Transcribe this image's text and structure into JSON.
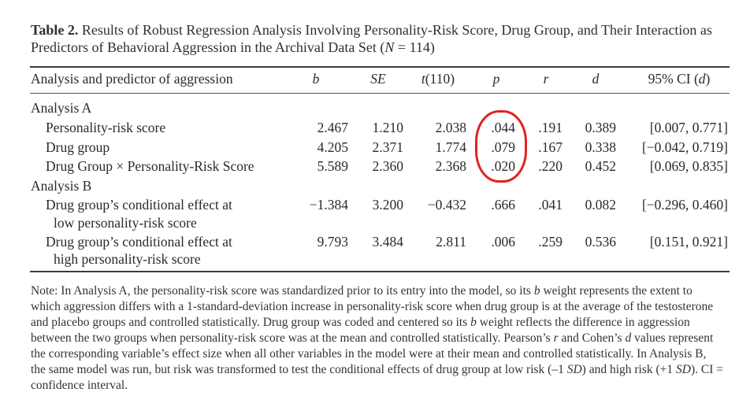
{
  "caption": {
    "label": "Table 2.",
    "text_a": "Results of Robust Regression Analysis Involving Personality-Risk Score, Drug Group, and Their Interaction as Predictors of Behavioral Aggression in the Archival Data Set (",
    "n_symbol": "N",
    "text_b": " = 114)"
  },
  "headers": {
    "predictor": "Analysis and predictor of aggression",
    "b": "b",
    "se": "SE",
    "t_italic": "t",
    "t_rest": "(110)",
    "p": "p",
    "r": "r",
    "d": "d",
    "ci_a": "95% CI (",
    "ci_d": "d",
    "ci_b": ")"
  },
  "analysis_a": {
    "label": "Analysis A",
    "rows": [
      {
        "predictor": "Personality-risk score",
        "b": "2.467",
        "se": "1.210",
        "t": "2.038",
        "p": ".044",
        "r": ".191",
        "d": "0.389",
        "ci": "[0.007, 0.771]"
      },
      {
        "predictor": "Drug group",
        "b": "4.205",
        "se": "2.371",
        "t": "1.774",
        "p": ".079",
        "r": ".167",
        "d": "0.338",
        "ci": "[−0.042, 0.719]"
      },
      {
        "predictor": "Drug Group × Personality-Risk Score",
        "b": "5.589",
        "se": "2.360",
        "t": "2.368",
        "p": ".020",
        "r": ".220",
        "d": "0.452",
        "ci": "[0.069, 0.835]"
      }
    ]
  },
  "analysis_b": {
    "label": "Analysis B",
    "rows": [
      {
        "predictor_line1": "Drug group’s conditional effect at",
        "predictor_line2": "low personality-risk score",
        "b": "−1.384",
        "se": "3.200",
        "t": "−0.432",
        "p": ".666",
        "r": ".041",
        "d": "0.082",
        "ci": "[−0.296, 0.460]"
      },
      {
        "predictor_line1": "Drug group’s conditional effect at",
        "predictor_line2": "high personality-risk score",
        "b": "9.793",
        "se": "3.484",
        "t": "2.811",
        "p": ".006",
        "r": ".259",
        "d": "0.536",
        "ci": "[0.151, 0.921]"
      }
    ]
  },
  "note": {
    "p1": "Note: In Analysis A, the personality-risk score was standardized prior to its entry into the model, so its ",
    "b1": "b",
    "p2": " weight represents the extent to which aggression differs with a 1-standard-deviation increase in personality-risk score when drug group is at the average of the testosterone and placebo groups and controlled statistically. Drug group was coded and centered so its ",
    "b2": "b",
    "p3": " weight reflects the difference in aggression between the two groups when personality-risk score was at the mean and controlled statistically. Pearson’s ",
    "r": "r",
    "p4": " and Cohen’s ",
    "d": "d",
    "p5": " values represent the corresponding variable’s effect size when all other variables in the model were at their mean and controlled statistically. In Analysis B, the same model was run, but risk was transformed to test the conditional effects of drug group at low risk (–1 ",
    "sd1": "SD",
    "p6": ") and high risk (+1 ",
    "sd2": "SD",
    "p7": "). CI = confidence interval."
  },
  "annotation": {
    "color": "#e0231f",
    "icon": "hand-drawn-circle-around-p-values"
  }
}
